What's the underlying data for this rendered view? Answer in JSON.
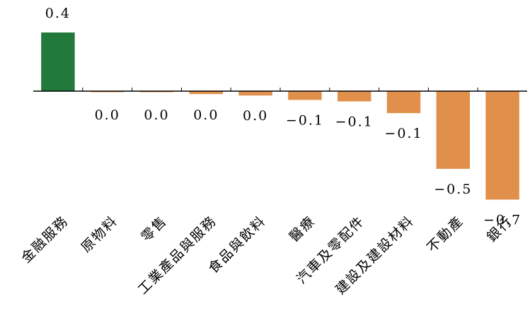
{
  "chart_data": {
    "type": "bar",
    "categories": [
      "金融服務",
      "原物料",
      "零售",
      "工業產品與服務",
      "食品與飲料",
      "醫療",
      "汽車及零配件",
      "建設及建設材料",
      "不動產",
      "銀行"
    ],
    "values": [
      0.4,
      -0.005,
      -0.005,
      -0.02,
      -0.03,
      -0.06,
      -0.07,
      -0.15,
      -0.53,
      -0.74
    ],
    "value_labels": [
      "0.4",
      "0.0",
      "0.0",
      "0.0",
      "0.0",
      "−0.1",
      "−0.1",
      "−0.1",
      "−0.5",
      "−0.7"
    ],
    "positive_color": "#217a3c",
    "negative_color": "#e0904a",
    "ylim": [
      -0.75,
      0.45
    ]
  }
}
